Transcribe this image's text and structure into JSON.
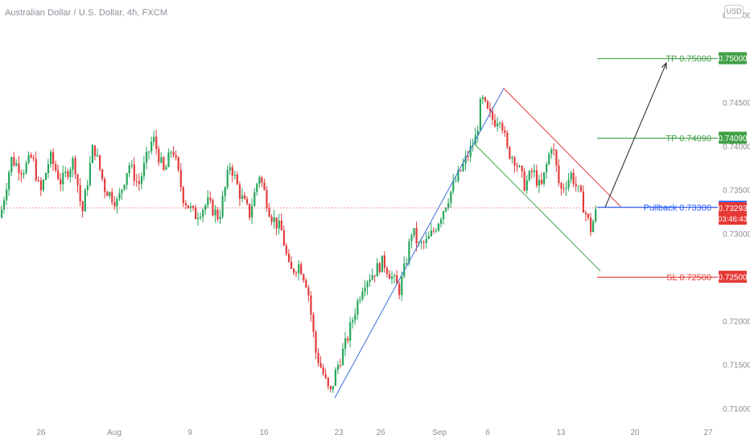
{
  "header": {
    "title": "Australian Dollar / U.S. Dollar, 4h, FXCM",
    "currency_button": "USD"
  },
  "chart_data": {
    "type": "candlestick",
    "title": "Australian Dollar / U.S. Dollar, 4h, FXCM",
    "xlabel": "",
    "ylabel": "",
    "x_tick_labels": [
      "26",
      "Aug",
      "9",
      "16",
      "23",
      "26",
      "Sep",
      "6",
      "13",
      "20",
      "27"
    ],
    "y_tick_labels": [
      "0.71000",
      "0.71500",
      "0.72000",
      "0.73000",
      "0.73500",
      "0.74000",
      "0.74500",
      "0.75500"
    ],
    "ylim": [
      0.7085,
      0.7555
    ],
    "grid": false,
    "colors": {
      "up": "#26a65b",
      "down": "#e23a3a",
      "trend": "#3a6fd8",
      "target": "#43a047",
      "stop": "#e53935",
      "arrow": "#222222"
    },
    "price_path": [
      [
        0,
        0.7318
      ],
      [
        14,
        0.7385
      ],
      [
        28,
        0.7372
      ],
      [
        40,
        0.7388
      ],
      [
        50,
        0.7345
      ],
      [
        62,
        0.7388
      ],
      [
        76,
        0.7358
      ],
      [
        92,
        0.7385
      ],
      [
        102,
        0.7322
      ],
      [
        116,
        0.7402
      ],
      [
        130,
        0.7352
      ],
      [
        146,
        0.7335
      ],
      [
        160,
        0.738
      ],
      [
        172,
        0.7355
      ],
      [
        190,
        0.741
      ],
      [
        204,
        0.7368
      ],
      [
        214,
        0.74
      ],
      [
        228,
        0.734
      ],
      [
        242,
        0.732
      ],
      [
        258,
        0.7335
      ],
      [
        272,
        0.7318
      ],
      [
        286,
        0.738
      ],
      [
        298,
        0.7345
      ],
      [
        310,
        0.7322
      ],
      [
        322,
        0.7368
      ],
      [
        336,
        0.7322
      ],
      [
        350,
        0.7302
      ],
      [
        360,
        0.7255
      ],
      [
        372,
        0.7265
      ],
      [
        382,
        0.724
      ],
      [
        392,
        0.7165
      ],
      [
        402,
        0.7138
      ],
      [
        410,
        0.7115
      ],
      [
        418,
        0.7145
      ],
      [
        430,
        0.7175
      ],
      [
        442,
        0.7215
      ],
      [
        452,
        0.7245
      ],
      [
        464,
        0.7255
      ],
      [
        476,
        0.7268
      ],
      [
        488,
        0.7248
      ],
      [
        496,
        0.7235
      ],
      [
        504,
        0.7265
      ],
      [
        512,
        0.7305
      ],
      [
        520,
        0.7285
      ],
      [
        530,
        0.729
      ],
      [
        540,
        0.7305
      ],
      [
        552,
        0.733
      ],
      [
        562,
        0.7352
      ],
      [
        574,
        0.7375
      ],
      [
        584,
        0.7395
      ],
      [
        592,
        0.7412
      ],
      [
        598,
        0.7455
      ],
      [
        606,
        0.7438
      ],
      [
        614,
        0.7428
      ],
      [
        622,
        0.7435
      ],
      [
        630,
        0.7395
      ],
      [
        640,
        0.7385
      ],
      [
        652,
        0.7355
      ],
      [
        662,
        0.7372
      ],
      [
        672,
        0.735
      ],
      [
        686,
        0.7405
      ],
      [
        696,
        0.7348
      ],
      [
        710,
        0.7368
      ],
      [
        722,
        0.734
      ],
      [
        734,
        0.7305
      ],
      [
        742,
        0.7329
      ]
    ],
    "trend_lines": [
      {
        "name": "uptrend",
        "x1": 416,
        "y1": 0.7112,
        "x2": 626,
        "y2": 0.7466
      },
      {
        "name": "channel-top",
        "x1": 626,
        "y1": 0.7466,
        "x2": 772,
        "y2": 0.733
      },
      {
        "name": "channel-bottom",
        "x1": 590,
        "y1": 0.7402,
        "x2": 746,
        "y2": 0.7257
      }
    ],
    "levels": [
      {
        "name": "TP",
        "label": "TP 0.75000",
        "value": 0.75,
        "tag": "0.75000",
        "color": "#43a047"
      },
      {
        "name": "TP",
        "label": "TP 0.74090",
        "value": 0.7409,
        "tag": "0.74090",
        "color": "#43a047"
      },
      {
        "name": "Pullback",
        "label": "Pullback 0.73300",
        "value": 0.733,
        "tag": "0.73300",
        "color": "#2962ff"
      },
      {
        "name": "SL",
        "label": "SL 0.72500",
        "value": 0.725,
        "tag": "0.72500",
        "color": "#e53935"
      }
    ],
    "current_price": {
      "value": 0.73293,
      "label": "0.73293",
      "countdown": "03:46:43"
    },
    "projection_arrow": {
      "from": [
        752,
        0.733
      ],
      "to": [
        828,
        0.7495
      ]
    }
  }
}
